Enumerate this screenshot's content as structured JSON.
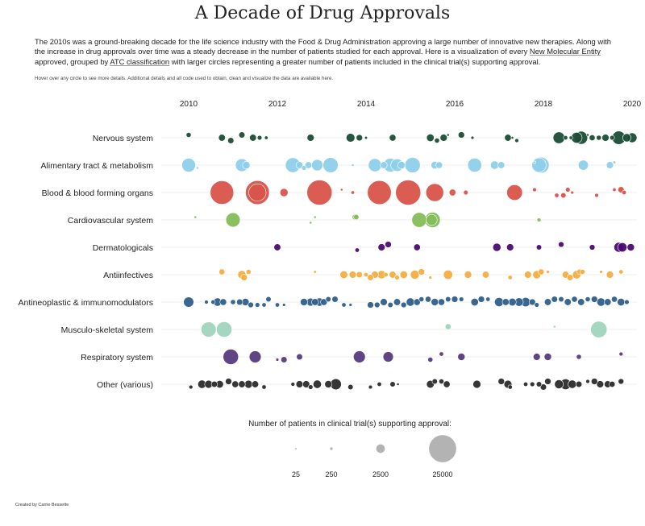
{
  "title": "A Decade of Drug Approvals",
  "intro": {
    "part1": "The 2010s was a ground-breaking decade for the life science industry with the Food & Drug Administration approving a large number of innovative new therapies. Along with the increase in drug approvals over time was a steady decrease in the number of patients studied for each approval. Here is a visualization of every ",
    "link1": "New Molecular Entity",
    "part2": " approved, grouped by ",
    "link2": "ATC classification",
    "part3": " with larger circles representing a greater number of patients included in the clinical trial(s) supporting approval."
  },
  "hover_note": {
    "text": "Hover over any circle to see more details. Additional details and all code used to obtain, clean and visualize the data are available ",
    "link": "here",
    "end": "."
  },
  "legend_title": "Number of patients in clinical trial(s) supporting approval:",
  "credit": "Created by Carrie Bessette",
  "chart_data": {
    "type": "scatter",
    "x_ticks": [
      "2010",
      "2012",
      "2014",
      "2016",
      "2018",
      "2020"
    ],
    "xlim": [
      2010,
      2020
    ],
    "size_legend": [
      {
        "label": "25",
        "value": 25
      },
      {
        "label": "250",
        "value": 250
      },
      {
        "label": "2500",
        "value": 2500
      },
      {
        "label": "25000",
        "value": 25000
      }
    ],
    "categories": [
      {
        "name": "Nervous system",
        "color": "#1b4d36",
        "points": [
          [
            2010.0,
            800
          ],
          [
            2010.75,
            1500
          ],
          [
            2010.95,
            1200
          ],
          [
            2011.2,
            1200
          ],
          [
            2011.45,
            1500
          ],
          [
            2011.6,
            700
          ],
          [
            2011.75,
            400
          ],
          [
            2012.75,
            1600
          ],
          [
            2013.65,
            2400
          ],
          [
            2013.85,
            1300
          ],
          [
            2014.0,
            250
          ],
          [
            2014.6,
            1400
          ],
          [
            2015.45,
            1800
          ],
          [
            2015.6,
            800
          ],
          [
            2015.75,
            1600
          ],
          [
            2015.85,
            200
          ],
          [
            2016.15,
            1300
          ],
          [
            2016.4,
            300
          ],
          [
            2017.2,
            1500
          ],
          [
            2017.3,
            200
          ],
          [
            2017.4,
            500
          ],
          [
            2018.35,
            4300
          ],
          [
            2018.5,
            600
          ],
          [
            2018.62,
            400
          ],
          [
            2018.75,
            3700
          ],
          [
            2018.85,
            5400
          ],
          [
            2019.0,
            200
          ],
          [
            2019.1,
            1100
          ],
          [
            2019.25,
            800
          ],
          [
            2019.4,
            1600
          ],
          [
            2019.55,
            700
          ],
          [
            2019.7,
            5700
          ],
          [
            2019.88,
            2200
          ],
          [
            2020.0,
            3000
          ]
        ]
      },
      {
        "name": "Alimentary tract & metabolism",
        "color": "#8ecfea",
        "points": [
          [
            2010.0,
            6000
          ],
          [
            2010.2,
            200
          ],
          [
            2011.2,
            5200
          ],
          [
            2011.3,
            1800
          ],
          [
            2012.35,
            7000
          ],
          [
            2012.5,
            1500
          ],
          [
            2012.6,
            700
          ],
          [
            2012.7,
            1500
          ],
          [
            2012.9,
            4000
          ],
          [
            2013.2,
            7200
          ],
          [
            2013.7,
            200
          ],
          [
            2014.2,
            5500
          ],
          [
            2014.4,
            1500
          ],
          [
            2014.55,
            6000
          ],
          [
            2014.7,
            5000
          ],
          [
            2014.8,
            1800
          ],
          [
            2015.05,
            7500
          ],
          [
            2015.55,
            1800
          ],
          [
            2015.65,
            1400
          ],
          [
            2016.45,
            6200
          ],
          [
            2016.9,
            2200
          ],
          [
            2017.05,
            1500
          ],
          [
            2017.8,
            200
          ],
          [
            2017.9,
            6500
          ],
          [
            2017.95,
            8000
          ],
          [
            2018.9,
            3200
          ],
          [
            2019.5,
            1600
          ],
          [
            2019.6,
            250
          ]
        ]
      },
      {
        "name": "Blood & blood forming organs",
        "color": "#d9534a",
        "points": [
          [
            2010.75,
            17500
          ],
          [
            2011.55,
            9500
          ],
          [
            2011.55,
            18000
          ],
          [
            2012.15,
            2100
          ],
          [
            2012.95,
            20000
          ],
          [
            2013.45,
            200
          ],
          [
            2013.7,
            400
          ],
          [
            2014.3,
            18000
          ],
          [
            2014.95,
            20000
          ],
          [
            2015.55,
            10000
          ],
          [
            2015.95,
            1400
          ],
          [
            2016.25,
            700
          ],
          [
            2017.35,
            7800
          ],
          [
            2017.8,
            500
          ],
          [
            2018.3,
            600
          ],
          [
            2018.45,
            900
          ],
          [
            2018.55,
            700
          ],
          [
            2018.65,
            300
          ],
          [
            2019.2,
            500
          ],
          [
            2019.6,
            400
          ],
          [
            2019.75,
            1200
          ],
          [
            2019.82,
            600
          ]
        ]
      },
      {
        "name": "Cardiovascular system",
        "color": "#84bd58",
        "points": [
          [
            2010.15,
            200
          ],
          [
            2011.0,
            6500
          ],
          [
            2012.75,
            200
          ],
          [
            2012.85,
            200
          ],
          [
            2013.75,
            1000
          ],
          [
            2013.78,
            900
          ],
          [
            2015.2,
            7000
          ],
          [
            2015.48,
            3800
          ],
          [
            2015.5,
            7500
          ],
          [
            2017.9,
            500
          ]
        ]
      },
      {
        "name": "Dermatologicals",
        "color": "#4b0a71",
        "points": [
          [
            2012.0,
            1500
          ],
          [
            2013.8,
            600
          ],
          [
            2014.35,
            1600
          ],
          [
            2014.5,
            1300
          ],
          [
            2015.15,
            1400
          ],
          [
            2016.95,
            2100
          ],
          [
            2017.25,
            1600
          ],
          [
            2017.9,
            900
          ],
          [
            2018.4,
            1000
          ],
          [
            2019.1,
            1000
          ],
          [
            2019.7,
            3000
          ],
          [
            2019.78,
            2700
          ],
          [
            2019.97,
            1700
          ]
        ]
      },
      {
        "name": "Antiinfectives",
        "color": "#f7ad40",
        "points": [
          [
            2010.75,
            1100
          ],
          [
            2011.2,
            2200
          ],
          [
            2011.25,
            1300
          ],
          [
            2011.35,
            800
          ],
          [
            2012.85,
            250
          ],
          [
            2013.5,
            1900
          ],
          [
            2013.7,
            1600
          ],
          [
            2013.85,
            1200
          ],
          [
            2014.0,
            600
          ],
          [
            2014.1,
            1200
          ],
          [
            2014.2,
            1600
          ],
          [
            2014.35,
            2200
          ],
          [
            2014.45,
            600
          ],
          [
            2014.6,
            1500
          ],
          [
            2014.7,
            700
          ],
          [
            2014.85,
            1800
          ],
          [
            2015.1,
            2500
          ],
          [
            2015.25,
            1300
          ],
          [
            2015.45,
            300
          ],
          [
            2015.85,
            2700
          ],
          [
            2016.3,
            1700
          ],
          [
            2016.7,
            1500
          ],
          [
            2017.25,
            600
          ],
          [
            2017.65,
            1600
          ],
          [
            2017.85,
            2100
          ],
          [
            2017.95,
            1100
          ],
          [
            2018.1,
            300
          ],
          [
            2018.5,
            1500
          ],
          [
            2018.6,
            1200
          ],
          [
            2018.75,
            2200
          ],
          [
            2018.82,
            1000
          ],
          [
            2018.88,
            800
          ],
          [
            2019.3,
            300
          ],
          [
            2019.5,
            1600
          ],
          [
            2019.75,
            600
          ]
        ]
      },
      {
        "name": "Antineoplastic & immunomodulators",
        "color": "#2f5f8a",
        "points": [
          [
            2010.0,
            3300
          ],
          [
            2010.4,
            500
          ],
          [
            2010.55,
            600
          ],
          [
            2010.65,
            2200
          ],
          [
            2010.78,
            1400
          ],
          [
            2011.0,
            800
          ],
          [
            2011.15,
            1200
          ],
          [
            2011.28,
            1700
          ],
          [
            2011.4,
            1000
          ],
          [
            2011.55,
            700
          ],
          [
            2011.7,
            600
          ],
          [
            2011.8,
            900
          ],
          [
            2012.0,
            600
          ],
          [
            2012.15,
            300
          ],
          [
            2012.6,
            1700
          ],
          [
            2012.75,
            2000
          ],
          [
            2012.85,
            1500
          ],
          [
            2012.95,
            2200
          ],
          [
            2013.05,
            1400
          ],
          [
            2013.15,
            900
          ],
          [
            2013.3,
            1200
          ],
          [
            2013.5,
            600
          ],
          [
            2013.65,
            300
          ],
          [
            2014.1,
            1300
          ],
          [
            2014.25,
            1000
          ],
          [
            2014.4,
            1600
          ],
          [
            2014.55,
            900
          ],
          [
            2014.7,
            1500
          ],
          [
            2014.85,
            1000
          ],
          [
            2015.0,
            2200
          ],
          [
            2015.15,
            1400
          ],
          [
            2015.25,
            800
          ],
          [
            2015.4,
            1100
          ],
          [
            2015.55,
            1700
          ],
          [
            2015.7,
            1400
          ],
          [
            2015.85,
            900
          ],
          [
            2016.0,
            1300
          ],
          [
            2016.15,
            700
          ],
          [
            2016.45,
            1800
          ],
          [
            2016.6,
            1300
          ],
          [
            2016.75,
            600
          ],
          [
            2017.0,
            2600
          ],
          [
            2017.15,
            1500
          ],
          [
            2017.3,
            1900
          ],
          [
            2017.45,
            2300
          ],
          [
            2017.6,
            2700
          ],
          [
            2017.75,
            1300
          ],
          [
            2017.85,
            700
          ],
          [
            2018.1,
            1500
          ],
          [
            2018.25,
            1200
          ],
          [
            2018.4,
            900
          ],
          [
            2018.55,
            1500
          ],
          [
            2018.7,
            1100
          ],
          [
            2018.85,
            1500
          ],
          [
            2019.0,
            800
          ],
          [
            2019.15,
            1300
          ],
          [
            2019.3,
            2200
          ],
          [
            2019.45,
            1500
          ],
          [
            2019.6,
            1100
          ],
          [
            2019.75,
            1800
          ],
          [
            2019.88,
            700
          ]
        ]
      },
      {
        "name": "Musculo-skeletal system",
        "color": "#9fd4bd",
        "points": [
          [
            2010.45,
            7200
          ],
          [
            2010.8,
            7600
          ],
          [
            2015.85,
            1100
          ],
          [
            2018.25,
            200
          ],
          [
            2019.25,
            8500
          ]
        ]
      },
      {
        "name": "Respiratory system",
        "color": "#563b7c",
        "points": [
          [
            2010.95,
            7500
          ],
          [
            2011.5,
            4500
          ],
          [
            2012.0,
            300
          ],
          [
            2012.15,
            1200
          ],
          [
            2012.5,
            1200
          ],
          [
            2013.85,
            4500
          ],
          [
            2014.5,
            3400
          ],
          [
            2015.45,
            800
          ],
          [
            2015.7,
            600
          ],
          [
            2016.15,
            1700
          ],
          [
            2017.85,
            1600
          ],
          [
            2018.1,
            1700
          ],
          [
            2018.8,
            800
          ],
          [
            2019.75,
            500
          ]
        ]
      },
      {
        "name": "Other (various)",
        "color": "#2b2b2b",
        "points": [
          [
            2010.05,
            500
          ],
          [
            2010.3,
            2200
          ],
          [
            2010.45,
            2000
          ],
          [
            2010.58,
            1200
          ],
          [
            2010.7,
            1800
          ],
          [
            2010.9,
            1300
          ],
          [
            2011.05,
            1400
          ],
          [
            2011.2,
            1500
          ],
          [
            2011.35,
            2000
          ],
          [
            2011.5,
            1500
          ],
          [
            2011.7,
            600
          ],
          [
            2012.35,
            500
          ],
          [
            2012.5,
            1600
          ],
          [
            2012.65,
            1600
          ],
          [
            2012.75,
            700
          ],
          [
            2012.9,
            2200
          ],
          [
            2013.15,
            1700
          ],
          [
            2013.32,
            3800
          ],
          [
            2013.65,
            900
          ],
          [
            2014.1,
            500
          ],
          [
            2014.3,
            600
          ],
          [
            2014.6,
            900
          ],
          [
            2014.72,
            200
          ],
          [
            2015.45,
            1900
          ],
          [
            2015.55,
            900
          ],
          [
            2015.7,
            800
          ],
          [
            2015.82,
            1400
          ],
          [
            2016.5,
            2000
          ],
          [
            2017.05,
            1300
          ],
          [
            2017.2,
            2000
          ],
          [
            2017.25,
            600
          ],
          [
            2017.6,
            600
          ],
          [
            2017.75,
            700
          ],
          [
            2017.9,
            900
          ],
          [
            2018.0,
            1200
          ],
          [
            2018.1,
            1300
          ],
          [
            2018.35,
            2500
          ],
          [
            2018.5,
            3600
          ],
          [
            2018.65,
            2200
          ],
          [
            2018.8,
            1200
          ],
          [
            2019.0,
            500
          ],
          [
            2019.15,
            1300
          ],
          [
            2019.28,
            1600
          ],
          [
            2019.45,
            1500
          ],
          [
            2019.55,
            1100
          ],
          [
            2019.75,
            1000
          ]
        ]
      }
    ]
  }
}
